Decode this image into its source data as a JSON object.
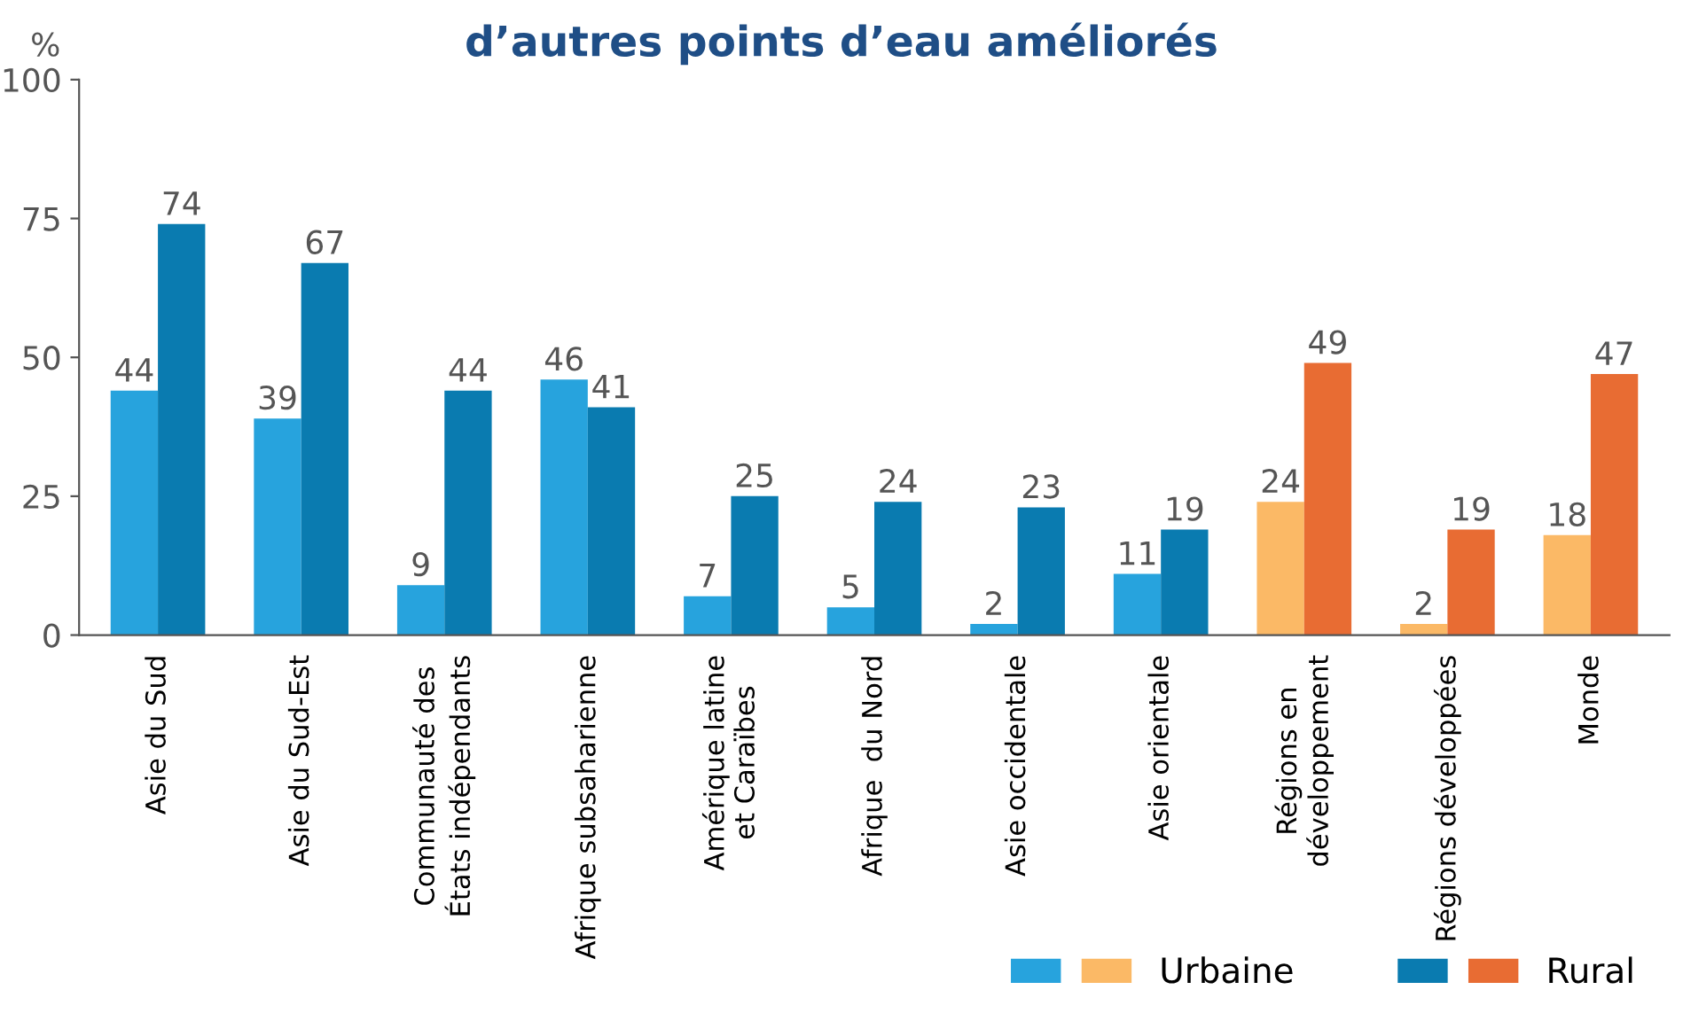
{
  "chart_data": {
    "type": "bar",
    "title": "d’autres points d’eau améliorés",
    "ylabel": "%",
    "categories": [
      "Asie du Sud",
      "Asie du Sud-Est",
      "Communauté des\nÉtats indépendants",
      "Afrique subsaharienne",
      "Amérique latine\net Caraïbes",
      "Afrique  du Nord",
      "Asie occidentale",
      "Asie orientale",
      "Régions en\ndéveloppement",
      "Régions développées",
      "Monde"
    ],
    "series": [
      {
        "name": "Urbaine",
        "color": "#27a3dd",
        "colors": [
          "#27a3dd",
          "#27a3dd",
          "#27a3dd",
          "#27a3dd",
          "#27a3dd",
          "#27a3dd",
          "#27a3dd",
          "#27a3dd",
          "#fbb966",
          "#fbb966",
          "#fbb966"
        ],
        "values": [
          44,
          39,
          9,
          46,
          7,
          5,
          2,
          11,
          24,
          2,
          18
        ]
      },
      {
        "name": "Rural",
        "color": "#0a7bb0",
        "colors": [
          "#0a7bb0",
          "#0a7bb0",
          "#0a7bb0",
          "#0a7bb0",
          "#0a7bb0",
          "#0a7bb0",
          "#0a7bb0",
          "#0a7bb0",
          "#e86c33",
          "#e86c33",
          "#e86c33"
        ],
        "values": [
          74,
          67,
          44,
          41,
          25,
          24,
          23,
          19,
          49,
          19,
          47
        ]
      }
    ],
    "ylim": [
      0,
      100
    ],
    "yticks": [
      0,
      25,
      50,
      75,
      100
    ],
    "grid": false,
    "data_labels": true,
    "legend": "bottom right"
  }
}
